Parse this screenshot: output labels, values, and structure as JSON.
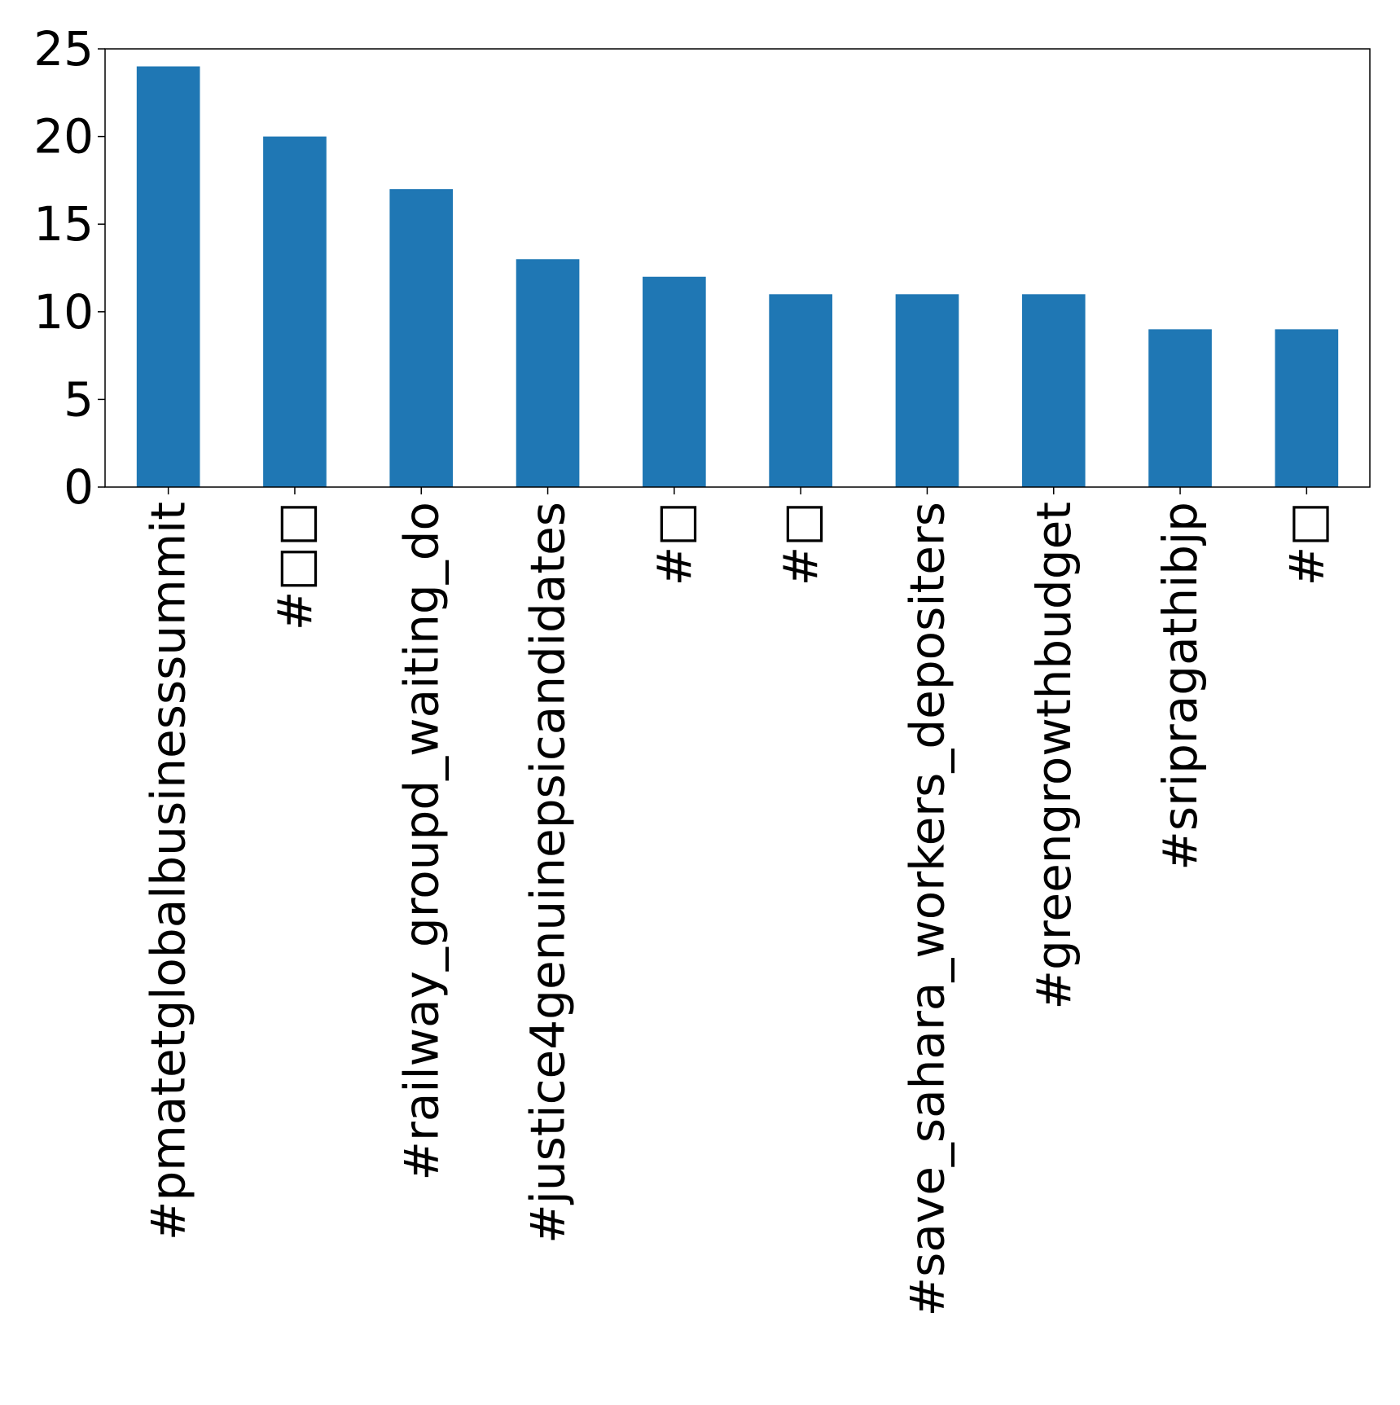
{
  "chart_data": {
    "type": "bar",
    "categories": [
      "#pmatetglobalbusinesssummit",
      "#□□",
      "#railway_groupd_waiting_do",
      "#justice4genuinepsicandidates",
      "#□",
      "#□",
      "#save_sahara_workers_depositers",
      "#greengrowthbudget",
      "#sripragathibjp",
      "#□"
    ],
    "values": [
      24,
      20,
      17,
      13,
      12,
      11,
      11,
      11,
      9,
      9
    ],
    "yticks": [
      "0",
      "5",
      "10",
      "15",
      "20",
      "25"
    ],
    "ylim": [
      0,
      25
    ],
    "grid": false,
    "legend": "none",
    "bar_color": "#1f77b4",
    "axis_color": "#000000"
  }
}
